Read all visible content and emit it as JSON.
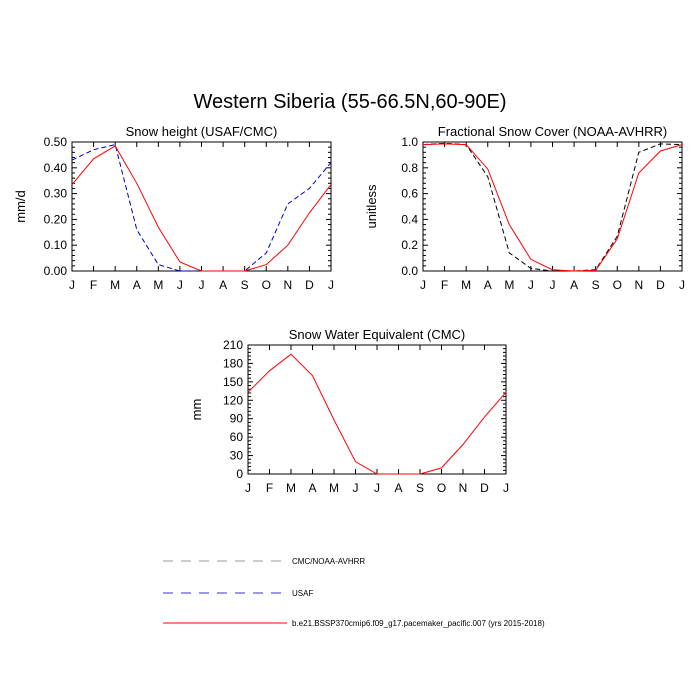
{
  "figure": {
    "title": "Western Siberia (55-66.5N,60-90E)"
  },
  "colors": {
    "model": "#ff0000",
    "usaf": "#0000cc",
    "obs": "#000000",
    "obs_legend": "#999999",
    "usaf_legend": "#3333cc"
  },
  "legend": [
    {
      "label": "CMC/NOAA-AVHRR",
      "style": "dashed",
      "color": "#999999"
    },
    {
      "label": "USAF",
      "style": "dashed",
      "color": "#3333cc"
    },
    {
      "label": "b.e21.BSSP370cmip6.f09_g17.pacemaker_pacific.007 (yrs 2015-2018)",
      "style": "solid",
      "color": "#ff0000"
    }
  ],
  "chart_data": [
    {
      "type": "line",
      "title": "Snow height (USAF/CMC)",
      "xlabel": "",
      "ylabel": "mm/d",
      "categories": [
        "J",
        "F",
        "M",
        "A",
        "M",
        "J",
        "J",
        "A",
        "S",
        "O",
        "N",
        "D",
        "J"
      ],
      "ylim": [
        0,
        0.5
      ],
      "yticks": [
        "0.00",
        "0.10",
        "0.20",
        "0.30",
        "0.40",
        "0.50"
      ],
      "series": [
        {
          "name": "USAF",
          "style": "dashed",
          "color": "#0000cc",
          "values": [
            0.43,
            0.47,
            0.49,
            0.16,
            0.025,
            0.0,
            0.0,
            0.0,
            0.0,
            0.07,
            0.26,
            0.32,
            0.42
          ]
        },
        {
          "name": "b.e21.BSSP370cmip6.f09_g17.pacemaker_pacific.007 (yrs 2015-2018)",
          "style": "solid",
          "color": "#ff0000",
          "values": [
            0.335,
            0.435,
            0.485,
            0.34,
            0.17,
            0.035,
            0.0,
            0.0,
            0.0,
            0.025,
            0.1,
            0.225,
            0.335
          ]
        }
      ]
    },
    {
      "type": "line",
      "title": "Fractional Snow Cover (NOAA-AVHRR)",
      "xlabel": "",
      "ylabel": "unitless",
      "categories": [
        "J",
        "F",
        "M",
        "A",
        "M",
        "J",
        "J",
        "A",
        "S",
        "O",
        "N",
        "D",
        "J"
      ],
      "ylim": [
        0,
        1.0
      ],
      "yticks": [
        "0.0",
        "0.2",
        "0.4",
        "0.6",
        "0.8",
        "1.0"
      ],
      "series": [
        {
          "name": "CMC/NOAA-AVHRR",
          "style": "dashed",
          "color": "#000000",
          "values": [
            0.98,
            0.99,
            0.98,
            0.73,
            0.14,
            0.02,
            0.0,
            0.0,
            0.01,
            0.27,
            0.92,
            0.985,
            0.98
          ]
        },
        {
          "name": "b.e21.BSSP370cmip6.f09_g17.pacemaker_pacific.007 (yrs 2015-2018)",
          "style": "solid",
          "color": "#ff0000",
          "values": [
            0.98,
            0.985,
            0.98,
            0.79,
            0.36,
            0.09,
            0.01,
            0.0,
            0.005,
            0.25,
            0.76,
            0.93,
            0.98
          ]
        }
      ]
    },
    {
      "type": "line",
      "title": "Snow Water Equivalent (CMC)",
      "xlabel": "",
      "ylabel": "mm",
      "categories": [
        "J",
        "F",
        "M",
        "A",
        "M",
        "J",
        "J",
        "A",
        "S",
        "O",
        "N",
        "D",
        "J"
      ],
      "ylim": [
        0,
        210
      ],
      "yticks": [
        "0",
        "30",
        "60",
        "90",
        "120",
        "150",
        "180",
        "210"
      ],
      "series": [
        {
          "name": "CMC/NOAA-AVHRR",
          "style": "dashed",
          "color": "#000000",
          "values": [
            0,
            0,
            0,
            0,
            0,
            0,
            0,
            0,
            0,
            0,
            0,
            0,
            0
          ]
        },
        {
          "name": "b.e21.BSSP370cmip6.f09_g17.pacemaker_pacific.007 (yrs 2015-2018)",
          "style": "solid",
          "color": "#ff0000",
          "values": [
            133,
            168,
            195,
            160,
            88,
            20,
            0,
            0,
            0,
            10,
            48,
            93,
            133
          ]
        }
      ]
    }
  ]
}
